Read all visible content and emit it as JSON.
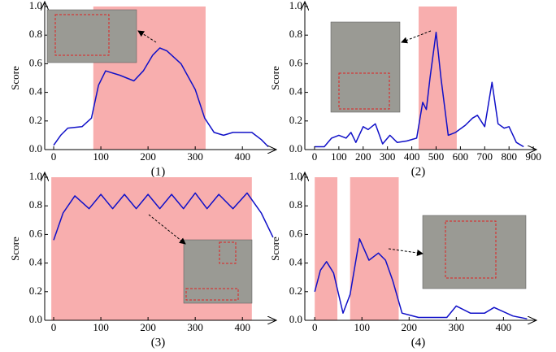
{
  "chart_data": [
    {
      "type": "line",
      "ylabel": "Score",
      "xlabel": "(1)",
      "color": "#1010c8",
      "highlight_color": "#f8aeae",
      "xlim": [
        -19,
        472
      ],
      "ylim": [
        0,
        1
      ],
      "xticks": [
        0,
        100,
        200,
        300,
        400
      ],
      "yticks": [
        {
          "value": 0,
          "label": "0.0"
        },
        0.2,
        0.4,
        0.6,
        0.8,
        {
          "value": 1,
          "label": "1.0"
        }
      ],
      "highlights": [
        [
          84,
          322
        ]
      ],
      "x": [
        0,
        15,
        30,
        60,
        80,
        95,
        110,
        140,
        170,
        190,
        210,
        225,
        240,
        270,
        300,
        320,
        340,
        360,
        380,
        420,
        440,
        455
      ],
      "y": [
        0.03,
        0.1,
        0.15,
        0.16,
        0.22,
        0.45,
        0.55,
        0.52,
        0.48,
        0.55,
        0.66,
        0.71,
        0.69,
        0.6,
        0.42,
        0.22,
        0.12,
        0.1,
        0.12,
        0.12,
        0.07,
        0.02
      ]
    },
    {
      "type": "line",
      "ylabel": "Score",
      "xlabel": "(2)",
      "color": "#1010c8",
      "highlight_color": "#f8aeae",
      "xlim": [
        -40,
        913
      ],
      "ylim": [
        0,
        1
      ],
      "xticks": [
        0,
        100,
        200,
        300,
        400,
        500,
        600,
        700,
        800,
        900
      ],
      "yticks": [
        {
          "value": 0,
          "label": "0.0"
        },
        0.2,
        0.4,
        0.6,
        0.8,
        {
          "value": 1,
          "label": "1.0"
        }
      ],
      "highlights": [
        [
          428,
          585
        ]
      ],
      "x": [
        0,
        40,
        70,
        100,
        130,
        150,
        170,
        200,
        220,
        250,
        280,
        310,
        340,
        380,
        420,
        445,
        460,
        475,
        500,
        520,
        550,
        580,
        620,
        650,
        670,
        700,
        730,
        755,
        780,
        800,
        830,
        860
      ],
      "y": [
        0.02,
        0.02,
        0.08,
        0.1,
        0.08,
        0.12,
        0.05,
        0.16,
        0.14,
        0.18,
        0.04,
        0.1,
        0.05,
        0.06,
        0.08,
        0.33,
        0.28,
        0.5,
        0.82,
        0.5,
        0.1,
        0.12,
        0.17,
        0.22,
        0.24,
        0.16,
        0.47,
        0.18,
        0.15,
        0.16,
        0.05,
        0.02
      ]
    },
    {
      "type": "line",
      "ylabel": "Score",
      "xlabel": "(3)",
      "color": "#1010c8",
      "highlight_color": "#f8aeae",
      "xlim": [
        -19,
        472
      ],
      "ylim": [
        0,
        1
      ],
      "xticks": [
        0,
        100,
        200,
        300,
        400
      ],
      "yticks": [
        {
          "value": 0,
          "label": "0.0"
        },
        0.2,
        0.4,
        0.6,
        0.8,
        {
          "value": 1,
          "label": "1.0"
        }
      ],
      "highlights": [
        [
          -5,
          420
        ]
      ],
      "x": [
        0,
        20,
        45,
        75,
        100,
        125,
        150,
        175,
        200,
        225,
        250,
        275,
        300,
        325,
        350,
        380,
        410,
        440,
        465
      ],
      "y": [
        0.56,
        0.75,
        0.87,
        0.78,
        0.88,
        0.78,
        0.88,
        0.78,
        0.88,
        0.78,
        0.88,
        0.78,
        0.89,
        0.78,
        0.88,
        0.78,
        0.89,
        0.75,
        0.58
      ]
    },
    {
      "type": "line",
      "ylabel": "Score",
      "xlabel": "(4)",
      "color": "#1010c8",
      "highlight_color": "#f8aeae",
      "xlim": [
        -21,
        470
      ],
      "ylim": [
        0,
        1
      ],
      "xticks": [
        0,
        100,
        200,
        300,
        400
      ],
      "yticks": [
        {
          "value": 0,
          "label": "0.0"
        },
        0.2,
        0.4,
        0.6,
        0.8,
        {
          "value": 1,
          "label": "1.0"
        }
      ],
      "highlights": [
        [
          0,
          48
        ],
        [
          75,
          178
        ]
      ],
      "x": [
        0,
        12,
        25,
        40,
        60,
        75,
        95,
        115,
        135,
        150,
        165,
        185,
        220,
        280,
        300,
        330,
        360,
        380,
        420,
        450
      ],
      "y": [
        0.2,
        0.35,
        0.41,
        0.33,
        0.05,
        0.18,
        0.57,
        0.42,
        0.47,
        0.42,
        0.28,
        0.05,
        0.02,
        0.02,
        0.1,
        0.05,
        0.05,
        0.09,
        0.03,
        0.01
      ]
    }
  ]
}
